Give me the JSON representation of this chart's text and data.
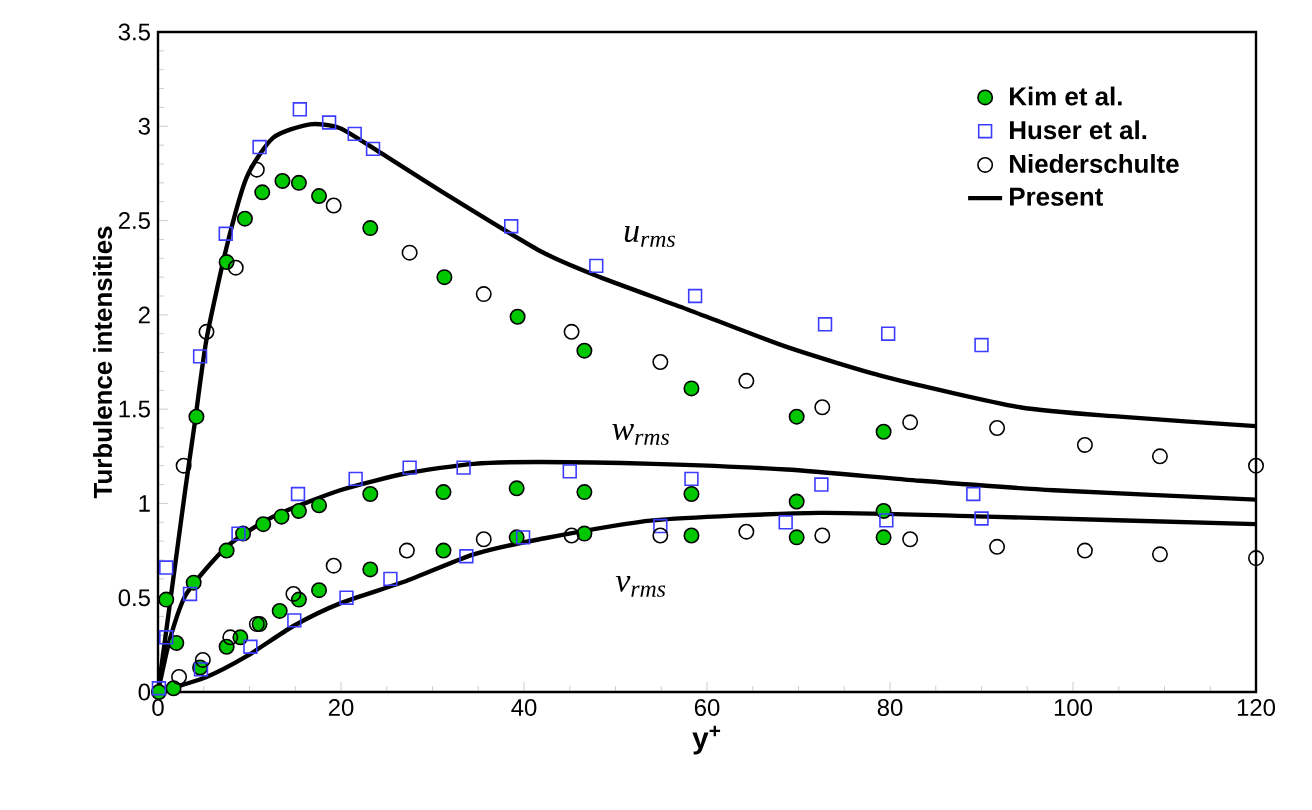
{
  "chart_data": {
    "type": "scatter",
    "xlabel": "y$^{+}$",
    "ylabel": "Turbulence intensities",
    "xlim": [
      0,
      120
    ],
    "ylim": [
      0,
      3.5
    ],
    "xticks": [
      0,
      20,
      40,
      60,
      80,
      100,
      120
    ],
    "yticks": [
      0,
      0.5,
      1,
      1.5,
      2,
      2.5,
      3,
      3.5
    ],
    "legend": "top right",
    "grid": false,
    "annotations": [
      "u$_{rms}$",
      "w$_{rms}$",
      "v$_{rms}$"
    ],
    "series": [
      {
        "name": "Kim et al.",
        "marker": "circle",
        "color": "#00c800",
        "x": [
          0.1,
          0.9,
          2.0,
          3.9,
          4.2,
          7.5,
          9.5,
          11.4,
          13.6,
          15.4,
          17.6,
          23.2,
          31.3,
          39.3,
          46.6,
          58.3,
          69.8,
          79.3,
          7.5,
          9.3,
          11.5,
          13.5,
          15.4,
          17.6,
          23.2,
          31.2,
          39.2,
          46.6,
          58.3,
          69.8,
          79.3,
          1.7,
          4.6,
          7.5,
          9.0,
          11.1,
          13.3,
          15.4,
          17.6,
          23.2,
          31.2,
          39.2,
          46.6,
          58.3,
          69.8,
          79.3
        ],
        "values": [
          0,
          0.49,
          0.26,
          0.58,
          1.46,
          2.28,
          2.51,
          2.65,
          2.71,
          2.7,
          2.63,
          2.46,
          2.2,
          1.99,
          1.81,
          1.61,
          1.46,
          1.38,
          0.75,
          0.84,
          0.89,
          0.93,
          0.96,
          0.99,
          1.05,
          1.06,
          1.08,
          1.06,
          1.05,
          1.01,
          0.96,
          0.02,
          0.13,
          0.24,
          0.29,
          0.36,
          0.43,
          0.49,
          0.54,
          0.65,
          0.75,
          0.82,
          0.84,
          0.83,
          0.82,
          0.82
        ]
      },
      {
        "name": "Huser et al.",
        "marker": "square",
        "color": "#3c3cff",
        "x": [
          0.1,
          0.9,
          0.9,
          3.5,
          4.6,
          7.4,
          11.1,
          15.5,
          18.7,
          21.5,
          23.5,
          38.6,
          47.9,
          58.7,
          72.9,
          79.8,
          90.0,
          8.8,
          15.3,
          21.6,
          27.5,
          33.4,
          45.0,
          58.3,
          72.5,
          89.1,
          4.7,
          10.1,
          14.9,
          20.6,
          25.4,
          33.7,
          39.9,
          54.9,
          68.6,
          79.6,
          90.0
        ],
        "values": [
          0.02,
          0.66,
          0.29,
          0.52,
          1.78,
          2.43,
          2.89,
          3.09,
          3.02,
          2.96,
          2.88,
          2.47,
          2.26,
          2.1,
          1.95,
          1.9,
          1.84,
          0.84,
          1.05,
          1.13,
          1.19,
          1.19,
          1.17,
          1.13,
          1.1,
          1.05,
          0.12,
          0.24,
          0.38,
          0.5,
          0.6,
          0.72,
          0.82,
          0.88,
          0.9,
          0.91,
          0.92
        ]
      },
      {
        "name": "Niederschulte",
        "marker": "circle",
        "color": "#000000",
        "x": [
          2.8,
          5.3,
          8.5,
          10.8,
          19.2,
          27.5,
          35.6,
          45.2,
          54.9,
          64.3,
          72.6,
          82.2,
          91.7,
          101.3,
          109.5,
          120,
          2.3,
          4.9,
          7.9,
          10.8,
          14.8,
          19.2,
          27.2,
          35.6,
          45.2,
          54.9,
          64.3,
          72.6,
          82.2,
          91.7,
          101.3,
          109.5,
          120
        ],
        "values": [
          1.2,
          1.91,
          2.25,
          2.77,
          2.58,
          2.33,
          2.11,
          1.91,
          1.75,
          1.65,
          1.51,
          1.43,
          1.4,
          1.31,
          1.25,
          1.2,
          0.08,
          0.17,
          0.29,
          0.36,
          0.52,
          0.67,
          0.75,
          0.81,
          0.83,
          0.83,
          0.85,
          0.83,
          0.81,
          0.77,
          0.75,
          0.73,
          0.71
        ]
      },
      {
        "name": "Present",
        "type": "line",
        "color": "#000000",
        "x": [
          0,
          1,
          2,
          3,
          4,
          5.3,
          7.5,
          9.7,
          12.6,
          16.6,
          19.9,
          24.3,
          30.8,
          41.7,
          48.3,
          57.8,
          68.7,
          79.6,
          94.2,
          105.1,
          120
        ],
        "values": [
          0,
          0.36,
          0.72,
          1.08,
          1.42,
          1.87,
          2.36,
          2.73,
          2.94,
          3.01,
          2.99,
          2.86,
          2.66,
          2.34,
          2.2,
          2.03,
          1.83,
          1.67,
          1.51,
          1.46,
          1.41
        ]
      },
      {
        "type": "line",
        "color": "#000000",
        "x": [
          0,
          1.3,
          3.1,
          7.5,
          12.6,
          19.9,
          27.2,
          34.5,
          41.7,
          54.1,
          68.7,
          83.3,
          97.9,
          120
        ],
        "values": [
          0,
          0.28,
          0.52,
          0.77,
          0.93,
          1.07,
          1.16,
          1.21,
          1.22,
          1.21,
          1.18,
          1.12,
          1.07,
          1.02
        ]
      },
      {
        "type": "line",
        "color": "#000000",
        "x": [
          0,
          5.3,
          9.7,
          14.8,
          19.9,
          27.2,
          34.5,
          41.7,
          54.1,
          72.3,
          90.6,
          120
        ],
        "values": [
          0,
          0.08,
          0.19,
          0.35,
          0.47,
          0.59,
          0.73,
          0.81,
          0.91,
          0.95,
          0.93,
          0.89
        ]
      }
    ]
  }
}
